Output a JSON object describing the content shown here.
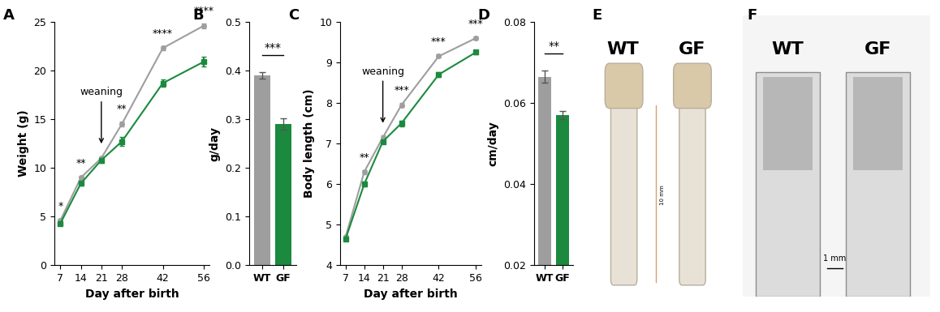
{
  "chart_data": [
    {
      "panel": "A",
      "type": "line",
      "x_label": "Day after birth",
      "y_label": "Weight (g)",
      "x": [
        7,
        14,
        21,
        28,
        42,
        56
      ],
      "series": [
        {
          "color": "#9e9e9e",
          "marker": "o",
          "values": [
            4.6,
            9.0,
            11.0,
            14.5,
            22.3,
            24.6
          ],
          "errors": [
            0.15,
            0.2,
            0.2,
            0.25,
            0.2,
            0.25
          ]
        },
        {
          "color": "#1b8a3e",
          "marker": "s",
          "values": [
            4.3,
            8.4,
            10.8,
            12.7,
            18.7,
            20.9
          ],
          "errors": [
            0.15,
            0.2,
            0.25,
            0.45,
            0.4,
            0.5
          ]
        }
      ],
      "xlim": [
        5,
        58
      ],
      "xticks": [
        7,
        14,
        21,
        28,
        42,
        56
      ],
      "ylim": [
        0,
        25
      ],
      "yticks": [
        0,
        5,
        10,
        15,
        20,
        25
      ],
      "annotations": [
        {
          "text": "*",
          "x": 7
        },
        {
          "text": "**",
          "x": 14
        },
        {
          "text": "**",
          "x": 28
        },
        {
          "text": "****",
          "x": 42
        },
        {
          "text": "****",
          "x": 56
        }
      ],
      "arrow_annotation": {
        "text": "weaning",
        "x": 21
      }
    },
    {
      "panel": "B",
      "type": "bar",
      "y_label": "g/day",
      "categories": [
        "WT",
        "GF"
      ],
      "values": [
        0.39,
        0.29
      ],
      "errors": [
        0.007,
        0.012
      ],
      "colors": [
        "#9e9e9e",
        "#1b8a3e"
      ],
      "ylim": [
        0.0,
        0.5
      ],
      "yticks": [
        0.0,
        0.1,
        0.2,
        0.3,
        0.4,
        0.5
      ],
      "significance": "***"
    },
    {
      "panel": "C",
      "type": "line",
      "x_label": "Day after birth",
      "y_label": "Body length (cm)",
      "x": [
        7,
        14,
        21,
        28,
        42,
        56
      ],
      "series": [
        {
          "color": "#9e9e9e",
          "marker": "o",
          "values": [
            4.7,
            6.3,
            7.15,
            7.95,
            9.15,
            9.6
          ],
          "errors": [
            0.03,
            0.05,
            0.05,
            0.05,
            0.04,
            0.04
          ]
        },
        {
          "color": "#1b8a3e",
          "marker": "s",
          "values": [
            4.65,
            6.0,
            7.05,
            7.5,
            8.7,
            9.25
          ],
          "errors": [
            0.03,
            0.06,
            0.05,
            0.07,
            0.06,
            0.05
          ]
        }
      ],
      "xlim": [
        5,
        58
      ],
      "xticks": [
        7,
        14,
        21,
        28,
        42,
        56
      ],
      "ylim": [
        4,
        10
      ],
      "yticks": [
        4,
        5,
        6,
        7,
        8,
        9,
        10
      ],
      "annotations": [
        {
          "text": "**",
          "x": 14
        },
        {
          "text": "***",
          "x": 28
        },
        {
          "text": "***",
          "x": 42
        },
        {
          "text": "***",
          "x": 56
        }
      ],
      "arrow_annotation": {
        "text": "weaning",
        "x": 21
      }
    },
    {
      "panel": "D",
      "type": "bar",
      "y_label": "cm/day",
      "categories": [
        "WT",
        "GF"
      ],
      "values": [
        0.0665,
        0.057
      ],
      "errors": [
        0.0015,
        0.001
      ],
      "colors": [
        "#9e9e9e",
        "#1b8a3e"
      ],
      "ylim": [
        0.02,
        0.08
      ],
      "yticks": [
        0.02,
        0.04,
        0.06,
        0.08
      ],
      "significance": "**"
    }
  ],
  "images": [
    {
      "panel": "E",
      "labels": [
        "WT",
        "GF"
      ],
      "scale_bar": "10 mm"
    },
    {
      "panel": "F",
      "labels": [
        "WT",
        "GF"
      ],
      "scale_bar": "1 mm"
    }
  ]
}
